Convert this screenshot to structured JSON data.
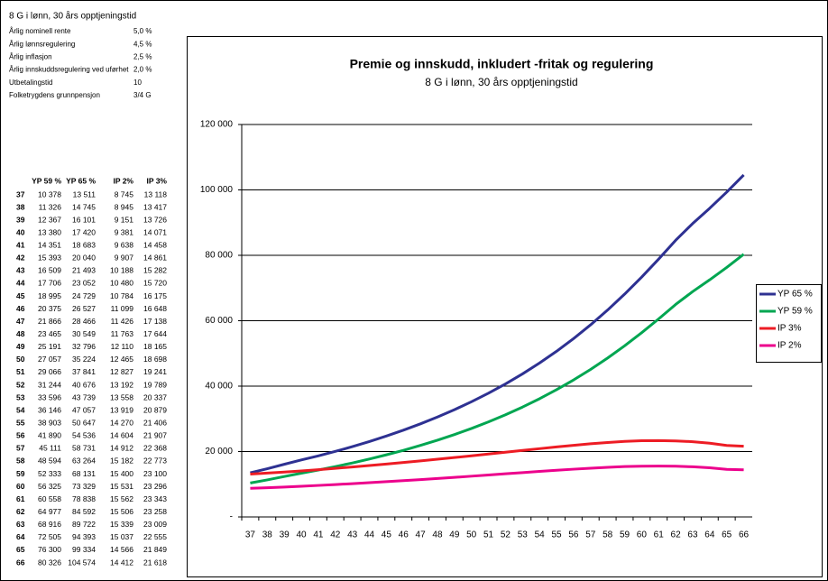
{
  "params": {
    "title": "8 G i lønn, 30 års opptjeningstid",
    "rows": [
      [
        "Årlig nominell rente",
        "5,0 %"
      ],
      [
        "Årlig lønnsregulering",
        "4,5 %"
      ],
      [
        "Årlig inflasjon",
        "2,5 %"
      ],
      [
        "Årlig innskuddsregulering ved uførhet",
        "2,0 %"
      ],
      [
        "Utbetalingstid",
        "10"
      ],
      [
        "Folketrygdens grunnpensjon",
        "3/4 G"
      ]
    ]
  },
  "table": {
    "header": [
      "YP 59 %",
      "YP 65 %",
      "IP 2%",
      "IP 3%"
    ],
    "rows": [
      [
        "37",
        "10 378",
        "13 511",
        "8 745",
        "13 118"
      ],
      [
        "38",
        "11 326",
        "14 745",
        "8 945",
        "13 417"
      ],
      [
        "39",
        "12 367",
        "16 101",
        "9 151",
        "13 726"
      ],
      [
        "40",
        "13 380",
        "17 420",
        "9 381",
        "14 071"
      ],
      [
        "41",
        "14 351",
        "18 683",
        "9 638",
        "14 458"
      ],
      [
        "42",
        "15 393",
        "20 040",
        "9 907",
        "14 861"
      ],
      [
        "43",
        "16 509",
        "21 493",
        "10 188",
        "15 282"
      ],
      [
        "44",
        "17 706",
        "23 052",
        "10 480",
        "15 720"
      ],
      [
        "45",
        "18 995",
        "24 729",
        "10 784",
        "16 175"
      ],
      [
        "46",
        "20 375",
        "26 527",
        "11 099",
        "16 648"
      ],
      [
        "47",
        "21 866",
        "28 466",
        "11 426",
        "17 138"
      ],
      [
        "48",
        "23 465",
        "30 549",
        "11 763",
        "17 644"
      ],
      [
        "49",
        "25 191",
        "32 796",
        "12 110",
        "18 165"
      ],
      [
        "50",
        "27 057",
        "35 224",
        "12 465",
        "18 698"
      ],
      [
        "51",
        "29 066",
        "37 841",
        "12 827",
        "19 241"
      ],
      [
        "52",
        "31 244",
        "40 676",
        "13 192",
        "19 789"
      ],
      [
        "53",
        "33 596",
        "43 739",
        "13 558",
        "20 337"
      ],
      [
        "54",
        "36 146",
        "47 057",
        "13 919",
        "20 879"
      ],
      [
        "55",
        "38 903",
        "50 647",
        "14 270",
        "21 406"
      ],
      [
        "56",
        "41 890",
        "54 536",
        "14 604",
        "21 907"
      ],
      [
        "57",
        "45 111",
        "58 731",
        "14 912",
        "22 368"
      ],
      [
        "58",
        "48 594",
        "63 264",
        "15 182",
        "22 773"
      ],
      [
        "59",
        "52 333",
        "68 131",
        "15 400",
        "23 100"
      ],
      [
        "60",
        "56 325",
        "73 329",
        "15 531",
        "23 296"
      ],
      [
        "61",
        "60 558",
        "78 838",
        "15 562",
        "23 343"
      ],
      [
        "62",
        "64 977",
        "84 592",
        "15 506",
        "23 258"
      ],
      [
        "63",
        "68 916",
        "89 722",
        "15 339",
        "23 009"
      ],
      [
        "64",
        "72 505",
        "94 393",
        "15 037",
        "22 555"
      ],
      [
        "65",
        "76 300",
        "99 334",
        "14 566",
        "21 849"
      ],
      [
        "66",
        "80 326",
        "104 574",
        "14 412",
        "21 618"
      ]
    ]
  },
  "chart_data": {
    "type": "line",
    "title": "Premie og innskudd, inkludert -fritak og regulering",
    "subtitle": "8 G i lønn, 30 års opptjeningstid",
    "categories": [
      37,
      38,
      39,
      40,
      41,
      42,
      43,
      44,
      45,
      46,
      47,
      48,
      49,
      50,
      51,
      52,
      53,
      54,
      55,
      56,
      57,
      58,
      59,
      60,
      61,
      62,
      63,
      64,
      65,
      66
    ],
    "series": [
      {
        "name": "YP 65 %",
        "color": "#2e3192",
        "values": [
          13511,
          14745,
          16101,
          17420,
          18683,
          20040,
          21493,
          23052,
          24729,
          26527,
          28466,
          30549,
          32796,
          35224,
          37841,
          40676,
          43739,
          47057,
          50647,
          54536,
          58731,
          63264,
          68131,
          73329,
          78838,
          84592,
          89722,
          94393,
          99334,
          104574
        ]
      },
      {
        "name": "YP 59 %",
        "color": "#00a651",
        "values": [
          10378,
          11326,
          12367,
          13380,
          14351,
          15393,
          16509,
          17706,
          18995,
          20375,
          21866,
          23465,
          25191,
          27057,
          29066,
          31244,
          33596,
          36146,
          38903,
          41890,
          45111,
          48594,
          52333,
          56325,
          60558,
          64977,
          68916,
          72505,
          76300,
          80326
        ]
      },
      {
        "name": "IP 3%",
        "color": "#ed1c24",
        "values": [
          13118,
          13417,
          13726,
          14071,
          14458,
          14861,
          15282,
          15720,
          16175,
          16648,
          17138,
          17644,
          18165,
          18698,
          19241,
          19789,
          20337,
          20879,
          21406,
          21907,
          22368,
          22773,
          23100,
          23296,
          23343,
          23258,
          23009,
          22555,
          21849,
          21618
        ]
      },
      {
        "name": "IP 2%",
        "color": "#ec008c",
        "values": [
          8745,
          8945,
          9151,
          9381,
          9638,
          9907,
          10188,
          10480,
          10784,
          11099,
          11426,
          11763,
          12110,
          12465,
          12827,
          13192,
          13558,
          13919,
          14270,
          14604,
          14912,
          15182,
          15400,
          15531,
          15562,
          15506,
          15339,
          15037,
          14566,
          14412
        ]
      }
    ],
    "ylim": [
      0,
      120000
    ],
    "yticks": [
      {
        "value": 0,
        "label": "-"
      },
      {
        "value": 20000,
        "label": "20 000"
      },
      {
        "value": 40000,
        "label": "40 000"
      },
      {
        "value": 60000,
        "label": "60 000"
      },
      {
        "value": 80000,
        "label": "80 000"
      },
      {
        "value": 100000,
        "label": "100 000"
      },
      {
        "value": 120000,
        "label": "120 000"
      }
    ],
    "grid": true,
    "legend": "right"
  }
}
